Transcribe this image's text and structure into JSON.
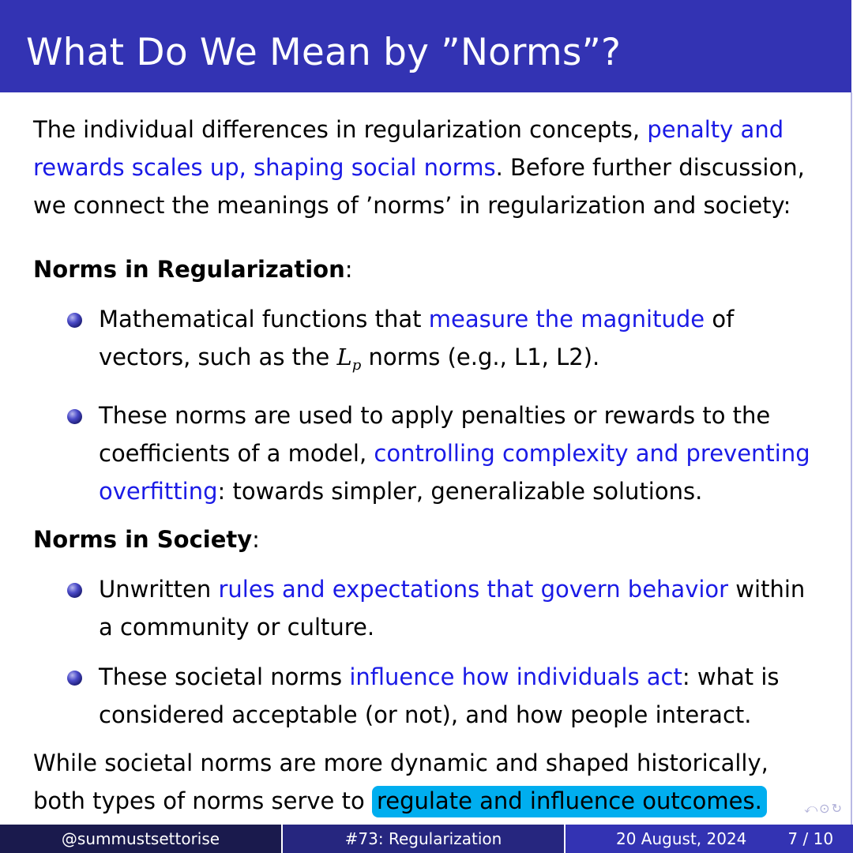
{
  "slide": {
    "title": "What Do We Mean by ”Norms”?"
  },
  "intro": {
    "part1": "The individual differences in regularization concepts, ",
    "highlight": "penalty and rewards scales up, shaping social norms",
    "part2": ".  Before further discussion, we connect the meanings of ’norms’ in regularization and society:"
  },
  "regularization": {
    "heading": "Norms in Regularization",
    "colon": ":",
    "item1": {
      "pre": "Mathematical functions that ",
      "highlight": "measure the magnitude",
      "mid": " of vectors, such as the ",
      "math_base": "L",
      "math_sub": "p",
      "post": " norms (e.g., L1, L2)."
    },
    "item2": {
      "pre": "These norms are used to apply penalties or rewards to the coefficients of a model, ",
      "highlight": "controlling complexity and preventing overfitting",
      "post": ":  towards simpler, generalizable solutions."
    }
  },
  "society": {
    "heading": "Norms in Society",
    "colon": ":",
    "item1": {
      "pre": "Unwritten ",
      "highlight": "rules and expectations that govern behavior",
      "post": " within a community or culture."
    },
    "item2": {
      "pre": "These societal norms ",
      "highlight": "influence how individuals act",
      "post": ":  what is considered acceptable (or not), and how people interact."
    }
  },
  "closing": {
    "pre": "While societal norms are more dynamic and shaped historically, both types of norms serve to ",
    "marked": "regulate and influence outcomes."
  },
  "navigation": {
    "symbols": "⤺⊙↻"
  },
  "footer": {
    "author": "@summustsettorise",
    "title": "#73:  Regularization",
    "date": "20 August, 2024",
    "page": "7 / 10"
  },
  "colors": {
    "title_bar": "#3333b3",
    "highlight_text": "#1a1ae6",
    "marker": "#00aeef",
    "footer_left": "#1a1a4d",
    "footer_mid": "#26267f",
    "footer_right": "#3333b3"
  }
}
